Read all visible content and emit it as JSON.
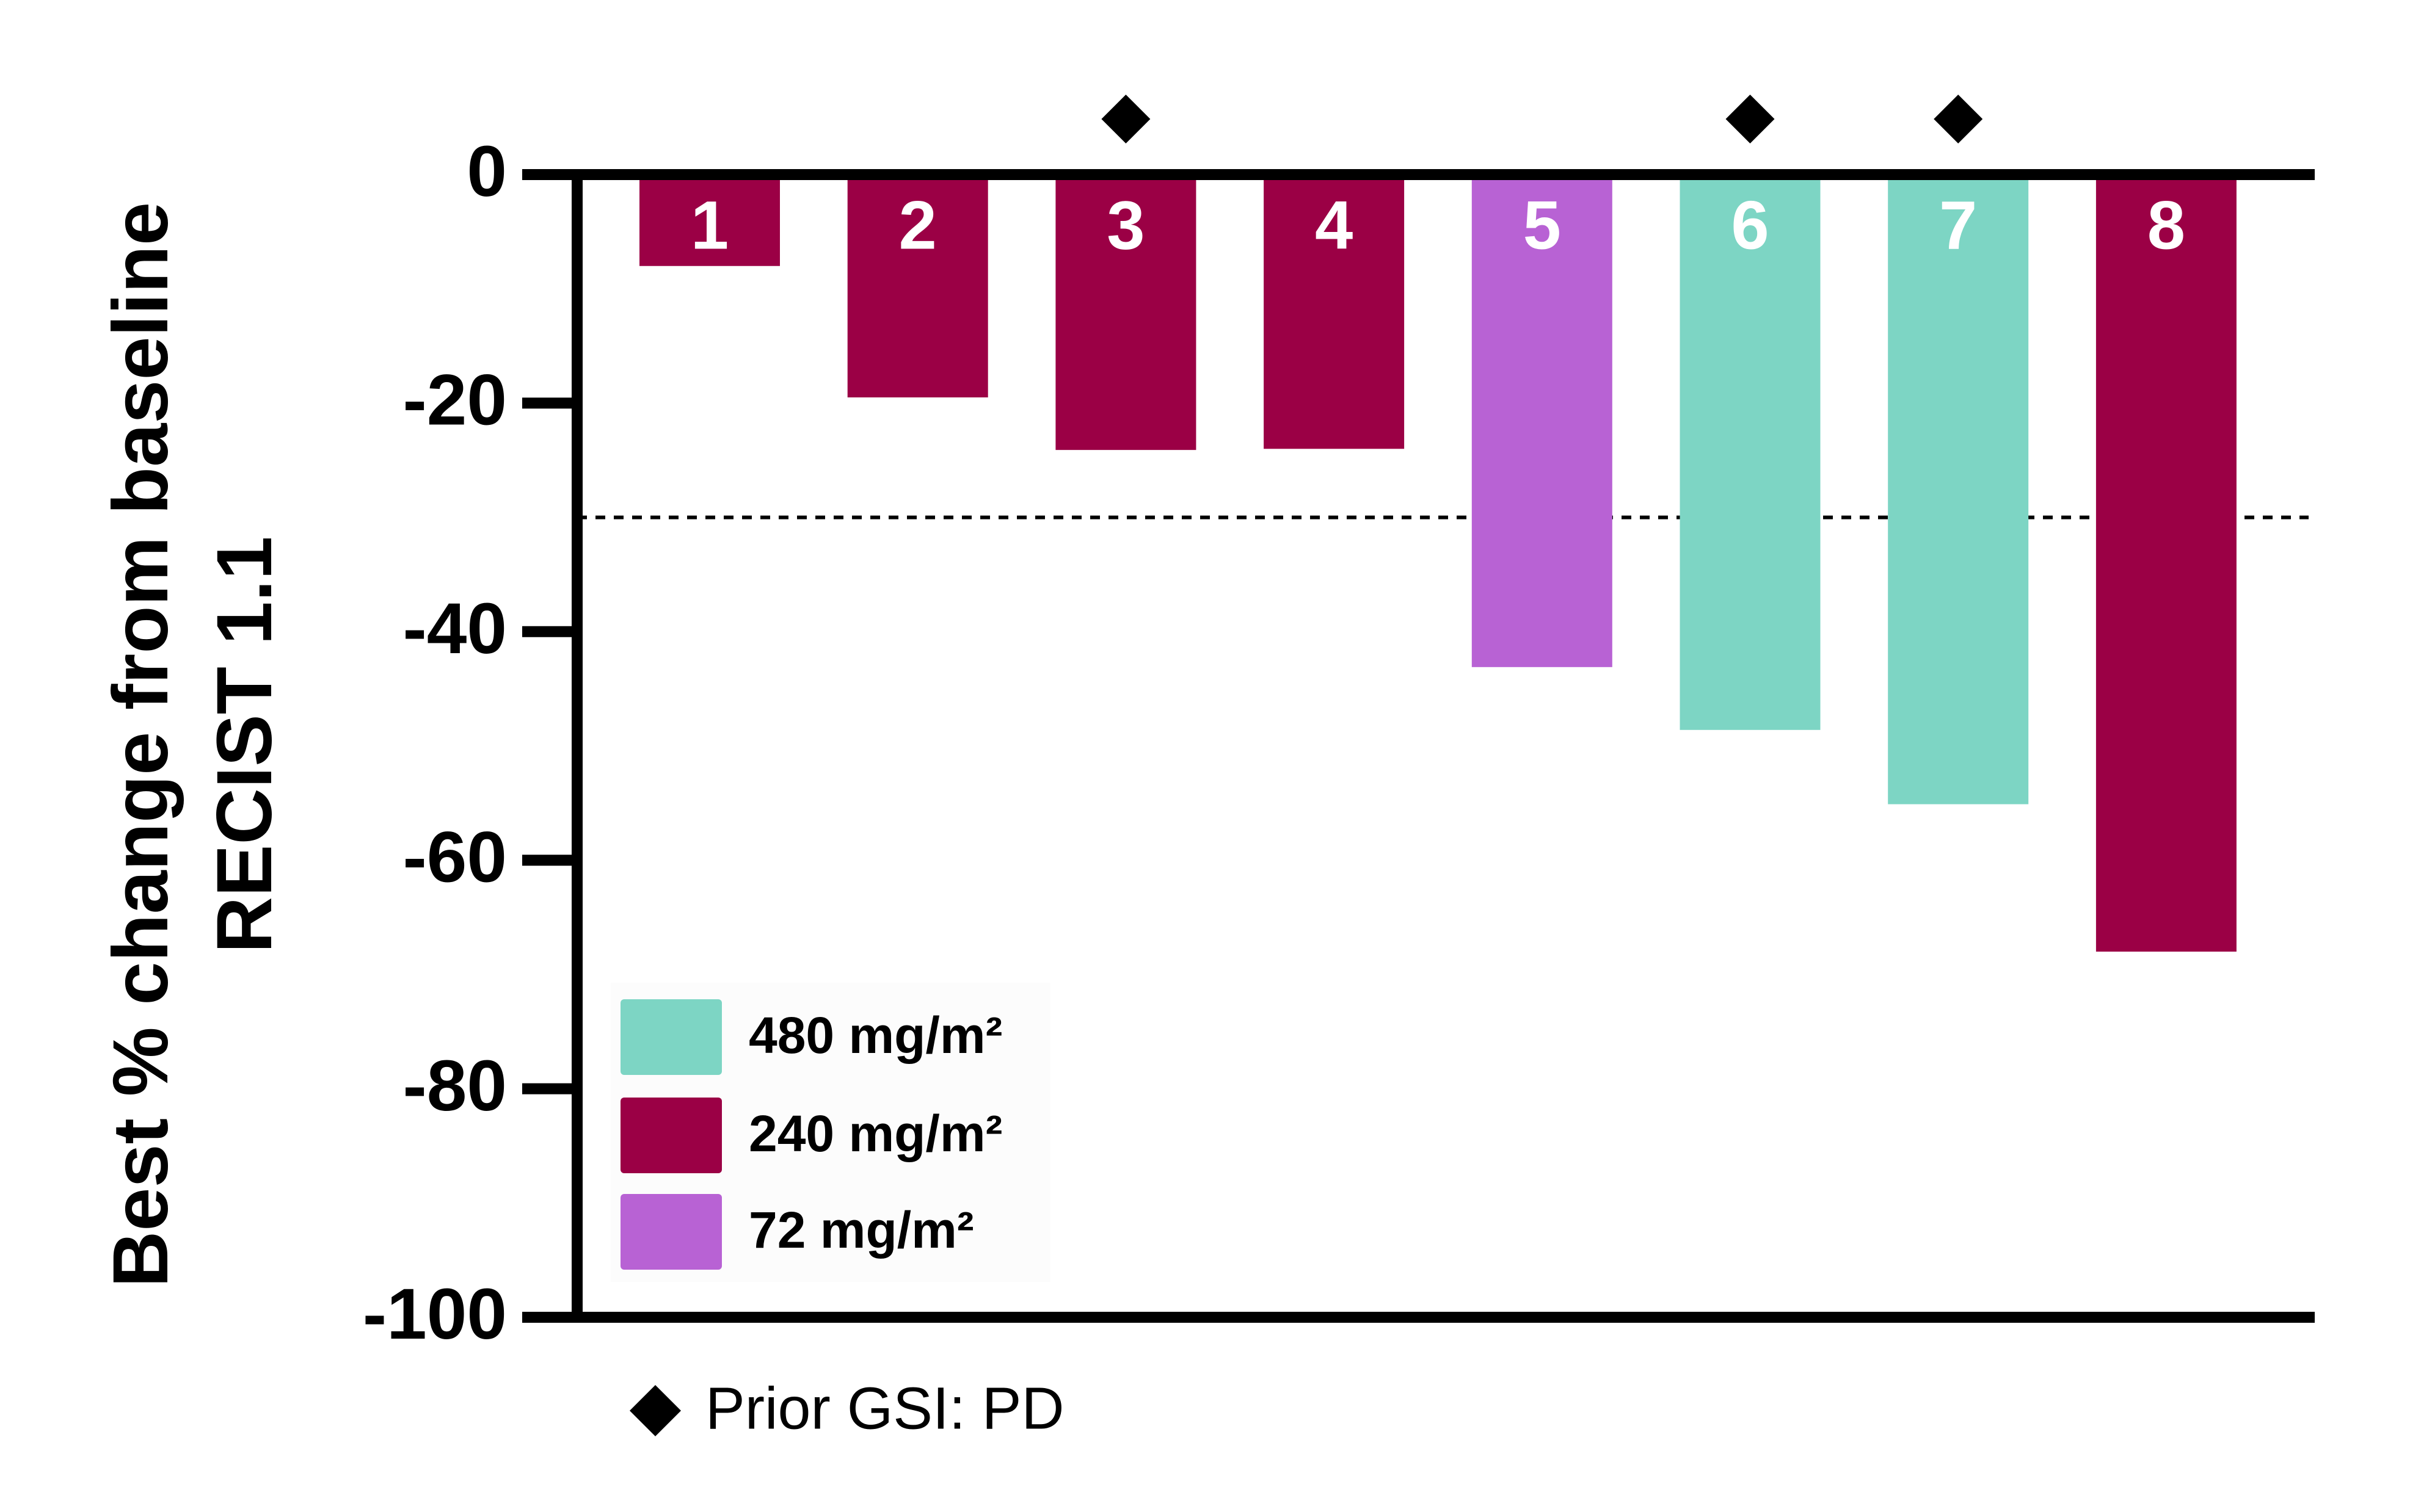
{
  "chart_data": {
    "type": "bar",
    "y_label": [
      "Best % change from baseline",
      "RECIST 1.1"
    ],
    "categories": [
      "1",
      "2",
      "3",
      "4",
      "5",
      "6",
      "7",
      "8"
    ],
    "series": [
      {
        "name": "480 mg/m²",
        "color": "#7dd5c4",
        "values": [
          null,
          null,
          null,
          null,
          null,
          -48.6,
          -55.1,
          null
        ]
      },
      {
        "name": "240 mg/m²",
        "color": "#9b0045",
        "values": [
          -8,
          -19.5,
          -24.1,
          -24,
          null,
          null,
          null,
          -68
        ]
      },
      {
        "name": "72 mg/m²",
        "color": "#b862d4",
        "values": [
          null,
          null,
          null,
          null,
          -43.1,
          null,
          null,
          null
        ]
      }
    ],
    "ylim": [
      -100,
      0
    ],
    "yticks": [
      0,
      -20,
      -40,
      -60,
      -80,
      -100
    ],
    "reference_line": -30,
    "marker_label": "Prior GSI: PD",
    "marker_flags": [
      false,
      false,
      true,
      false,
      false,
      true,
      true,
      false
    ]
  }
}
